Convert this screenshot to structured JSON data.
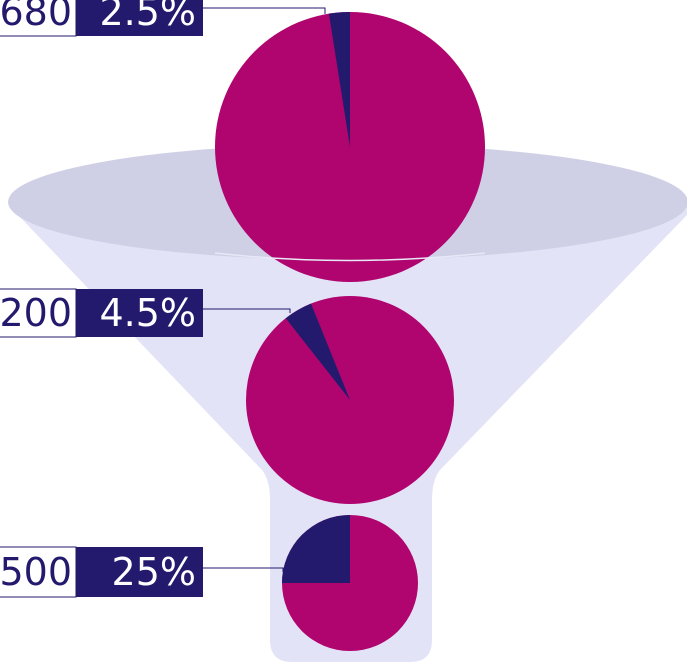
{
  "chart_data": {
    "type": "funnel-pies",
    "categories": [
      "680",
      "200",
      "500"
    ],
    "values": [
      2.5,
      4.5,
      25
    ],
    "value_labels": [
      "2.5%",
      "4.5%",
      "25%"
    ],
    "colors": {
      "slice": "#231a6e",
      "rest": "#b0056f"
    }
  }
}
